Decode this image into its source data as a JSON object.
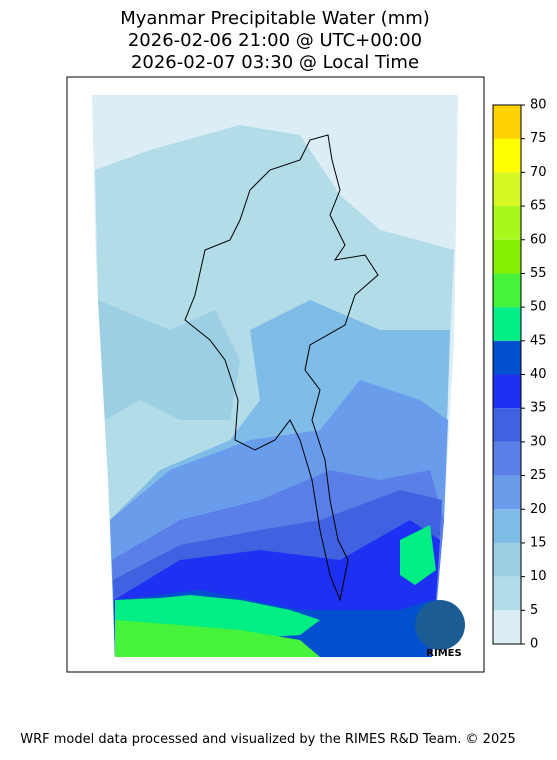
{
  "title": [
    "Myanmar Precipitable Water (mm)",
    "2026-02-06 21:00 @ UTC+00:00",
    "2026-02-07 03:30 @ Local Time"
  ],
  "colorbar": {
    "levels": [
      0,
      5,
      10,
      15,
      20,
      25,
      30,
      35,
      40,
      45,
      50,
      55,
      60,
      65,
      70,
      75,
      80
    ],
    "colors": [
      "#dcedf6",
      "#b2dce8",
      "#9ccfe3",
      "#7fbce8",
      "#6a9cec",
      "#5a80e8",
      "#4062e0",
      "#1e30f2",
      "#0050d0",
      "#00ee84",
      "#46f23a",
      "#86f000",
      "#a8f81e",
      "#d4f820",
      "#ffff00",
      "#ffd200"
    ]
  },
  "logo": "RIMES",
  "footer": "WRF model data processed and visualized by the RIMES R&D Team. © 2025"
}
